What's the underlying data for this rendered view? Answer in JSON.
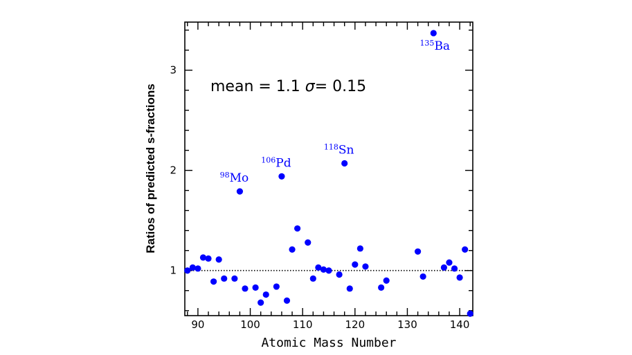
{
  "chart_data": {
    "type": "scatter",
    "title": "",
    "xlabel": "Atomic Mass Number",
    "ylabel": "Ratios of predicted  s-fractions",
    "xlim": [
      87.5,
      142.5
    ],
    "ylim": [
      0.55,
      3.48
    ],
    "xticks": [
      90,
      100,
      110,
      120,
      130,
      140
    ],
    "xtick_labels": [
      "90",
      "100",
      "110",
      "120",
      "130",
      "140"
    ],
    "yticks": [
      1,
      2,
      3
    ],
    "ytick_labels": [
      "1",
      "2",
      "3"
    ],
    "reference_line": 1.0,
    "annotation": {
      "prefix": "mean = 1.1 ",
      "sigma": "σ",
      "suffix": "= 0.15"
    },
    "color": "#0000ff",
    "points": [
      {
        "x": 88,
        "y": 1.0
      },
      {
        "x": 89,
        "y": 1.03
      },
      {
        "x": 90,
        "y": 1.02
      },
      {
        "x": 91,
        "y": 1.13
      },
      {
        "x": 92,
        "y": 1.12
      },
      {
        "x": 93,
        "y": 0.89
      },
      {
        "x": 94,
        "y": 1.11
      },
      {
        "x": 95,
        "y": 0.92
      },
      {
        "x": 97,
        "y": 0.92
      },
      {
        "x": 98,
        "y": 1.79
      },
      {
        "x": 99,
        "y": 0.82
      },
      {
        "x": 101,
        "y": 0.83
      },
      {
        "x": 102,
        "y": 0.68
      },
      {
        "x": 103,
        "y": 0.76
      },
      {
        "x": 105,
        "y": 0.84
      },
      {
        "x": 106,
        "y": 1.94
      },
      {
        "x": 107,
        "y": 0.7
      },
      {
        "x": 108,
        "y": 1.21
      },
      {
        "x": 109,
        "y": 1.42
      },
      {
        "x": 111,
        "y": 1.28
      },
      {
        "x": 112,
        "y": 0.92
      },
      {
        "x": 113,
        "y": 1.03
      },
      {
        "x": 114,
        "y": 1.01
      },
      {
        "x": 115,
        "y": 1.0
      },
      {
        "x": 117,
        "y": 0.96
      },
      {
        "x": 118,
        "y": 2.07
      },
      {
        "x": 119,
        "y": 0.82
      },
      {
        "x": 120,
        "y": 1.06
      },
      {
        "x": 121,
        "y": 1.22
      },
      {
        "x": 122,
        "y": 1.04
      },
      {
        "x": 125,
        "y": 0.83
      },
      {
        "x": 126,
        "y": 0.9
      },
      {
        "x": 132,
        "y": 1.19
      },
      {
        "x": 133,
        "y": 0.94
      },
      {
        "x": 135,
        "y": 3.37
      },
      {
        "x": 137,
        "y": 1.03
      },
      {
        "x": 138,
        "y": 1.08
      },
      {
        "x": 139,
        "y": 1.02
      },
      {
        "x": 140,
        "y": 0.93
      },
      {
        "x": 141,
        "y": 1.21
      },
      {
        "x": 142,
        "y": 0.57
      }
    ],
    "labels": [
      {
        "mass": "98",
        "element": "Mo",
        "x": 98,
        "y": 1.79
      },
      {
        "mass": "106",
        "element": "Pd",
        "x": 106,
        "y": 1.94
      },
      {
        "mass": "118",
        "element": "Sn",
        "x": 118,
        "y": 2.07
      },
      {
        "mass": "135",
        "element": "Ba",
        "x": 135,
        "y": 3.37
      }
    ]
  }
}
